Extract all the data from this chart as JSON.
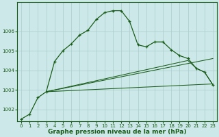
{
  "background_color": "#cce8e8",
  "grid_color": "#aacccc",
  "line_color": "#1a5c1a",
  "xlabel": "Graphe pression niveau de la mer (hPa)",
  "xlabel_fontsize": 6.5,
  "xlim": [
    -0.5,
    23.5
  ],
  "ylim": [
    1001.4,
    1007.5
  ],
  "yticks": [
    1002,
    1003,
    1004,
    1005,
    1006
  ],
  "xticks": [
    0,
    1,
    2,
    3,
    4,
    5,
    6,
    7,
    8,
    9,
    10,
    11,
    12,
    13,
    14,
    15,
    16,
    17,
    18,
    19,
    20,
    21,
    22,
    23
  ],
  "line1_x": [
    0,
    1,
    2,
    3,
    4,
    5,
    6,
    7,
    8,
    9,
    10,
    11,
    12,
    13,
    14,
    15,
    16,
    17,
    18,
    19,
    20,
    21,
    22,
    23
  ],
  "line1_y": [
    1001.5,
    1001.75,
    1002.6,
    1002.9,
    1004.45,
    1005.0,
    1005.35,
    1005.8,
    1006.05,
    1006.6,
    1006.95,
    1007.05,
    1007.05,
    1006.5,
    1005.3,
    1005.2,
    1005.45,
    1005.45,
    1005.05,
    1004.75,
    1004.6,
    1004.1,
    1003.9,
    1003.25
  ],
  "line2_x": [
    3,
    23
  ],
  "line2_y": [
    1002.9,
    1003.3
  ],
  "line3_x": [
    3,
    23
  ],
  "line3_y": [
    1002.9,
    1004.6
  ],
  "line4_x": [
    3,
    20,
    21,
    22,
    23
  ],
  "line4_y": [
    1002.9,
    1004.5,
    1004.1,
    1003.9,
    1003.25
  ],
  "tick_fontsize": 5,
  "tick_color": "#1a5c1a"
}
